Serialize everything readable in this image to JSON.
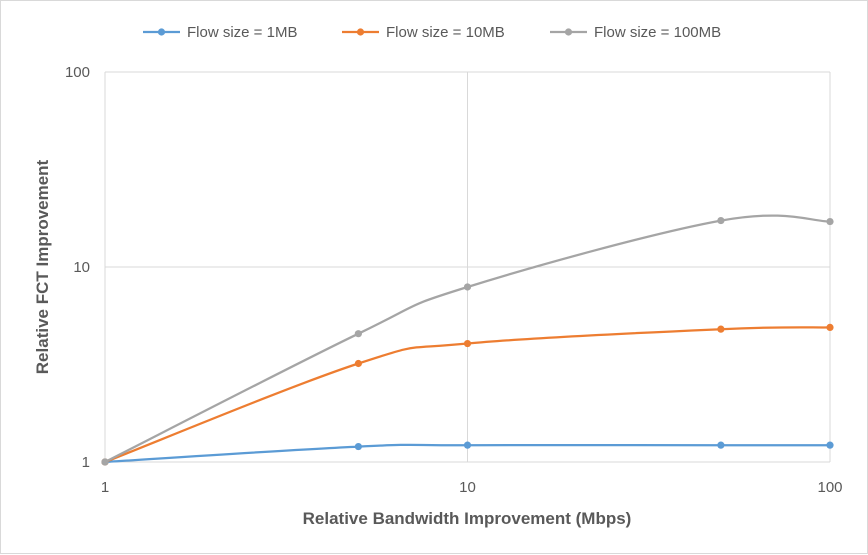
{
  "chart_data": {
    "type": "line",
    "xlabel": "Relative Bandwidth Improvement  (Mbps)",
    "ylabel": "Relative FCT Improvement",
    "xscale": "log",
    "yscale": "log",
    "xlim": [
      1,
      100
    ],
    "ylim": [
      1,
      100
    ],
    "xticks": [
      "1",
      "10",
      "100"
    ],
    "yticks": [
      "1",
      "10",
      "100"
    ],
    "grid": true,
    "legend_position": "top",
    "x": [
      1,
      5,
      10,
      50,
      100
    ],
    "series": [
      {
        "name": "Flow size = 1MB",
        "color": "#5b9bd5",
        "values": [
          1,
          1.2,
          1.22,
          1.22,
          1.22
        ]
      },
      {
        "name": "Flow size = 10MB",
        "color": "#ed7d31",
        "values": [
          1,
          3.2,
          4.05,
          4.8,
          4.9
        ]
      },
      {
        "name": "Flow size = 100MB",
        "color": "#a5a5a5",
        "values": [
          1,
          4.55,
          7.9,
          17.3,
          17.1
        ]
      }
    ]
  }
}
